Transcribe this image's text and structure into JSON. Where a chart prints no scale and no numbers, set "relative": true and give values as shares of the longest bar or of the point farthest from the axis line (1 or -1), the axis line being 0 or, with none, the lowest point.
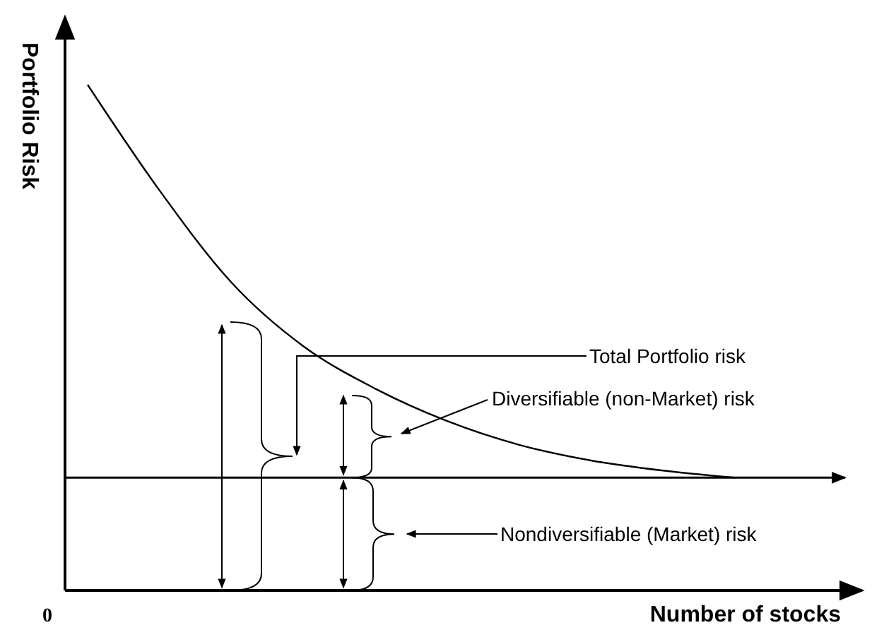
{
  "chart_data": {
    "type": "line",
    "relative": true,
    "xlabel": "Number of stocks",
    "ylabel": "Portfolio Risk",
    "categories": [
      null,
      null,
      null,
      null,
      null,
      null,
      null,
      null,
      null,
      null
    ],
    "series": [
      {
        "color": "#000000",
        "values": [
          1,
          0.791,
          0.609,
          0.483,
          0.399,
          0.335,
          0.288,
          0.257,
          0.237,
          0.223
        ]
      }
    ],
    "marker": "none",
    "line_style": "solid",
    "ref_lines": [
      {
        "axis": "y",
        "value": 0.223,
        "color": "#000000"
      }
    ],
    "annotations": [
      "Total Portfolio risk",
      "Diversifiable (non-Market) risk",
      "Nondiversifiable (Market) risk",
      "0"
    ]
  }
}
